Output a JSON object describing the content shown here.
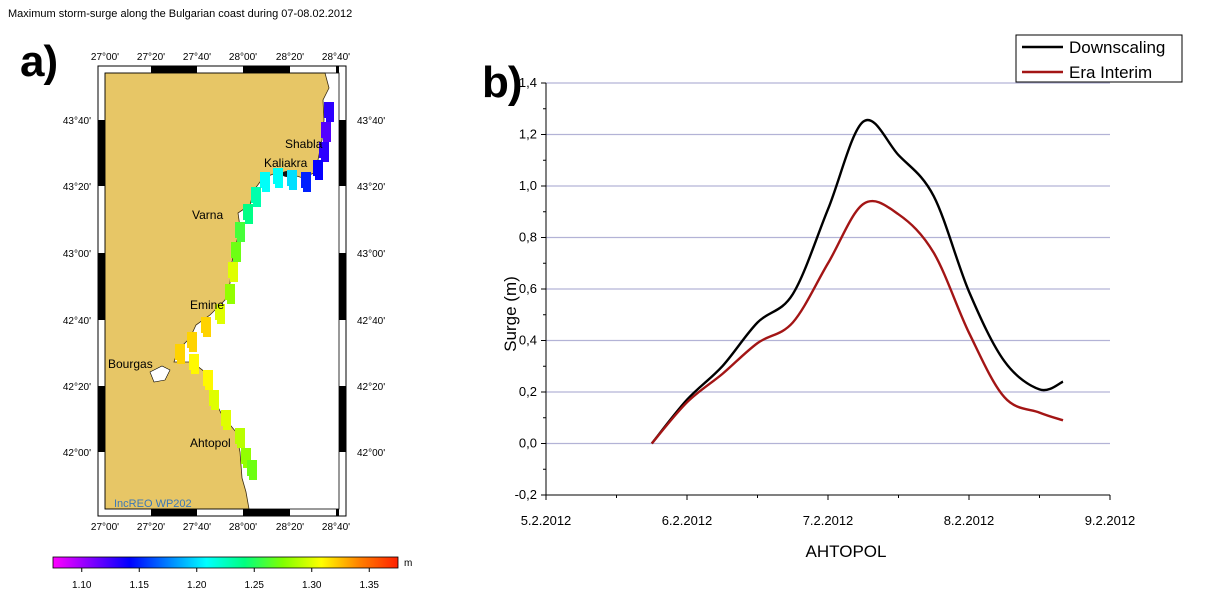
{
  "title": "Maximum storm-surge along the Bulgarian coast during 07-08.02.2012",
  "panel_a": {
    "letter": "a)",
    "lon_labels": [
      "27°00'",
      "27°20'",
      "27°40'",
      "28°00'",
      "28°20'",
      "28°40'"
    ],
    "lat_labels": [
      "43°40'",
      "43°20'",
      "43°00'",
      "42°40'",
      "42°20'",
      "42°00'"
    ],
    "places": [
      "Shabla",
      "Kaliakra",
      "Varna",
      "Emine",
      "Bourgas",
      "Ahtopol"
    ],
    "watermark": "IncREO WP202",
    "colors": {
      "land": "#e7c666",
      "sea": "#ffffff"
    },
    "colorbar": {
      "ticks": [
        "1.10",
        "1.15",
        "1.20",
        "1.25",
        "1.30",
        "1.35"
      ],
      "unit": "m",
      "min": 1.075,
      "max": 1.375,
      "colors": [
        "#ff00ff",
        "#8000ff",
        "#0000ff",
        "#0080ff",
        "#00ffff",
        "#00ff80",
        "#80ff00",
        "#ffff00",
        "#ff8000",
        "#ff2000"
      ]
    },
    "coast_surge": [
      1.13,
      1.12,
      1.13,
      1.14,
      1.15,
      1.2,
      1.21,
      1.23,
      1.24,
      1.26,
      1.27,
      1.3,
      1.28,
      1.3,
      1.32,
      1.32,
      1.32,
      1.31,
      1.3,
      1.3,
      1.29,
      1.28,
      1.27
    ]
  },
  "chart_data": {
    "type": "line",
    "panel_letter": "b)",
    "xlabel": "AHTOPOL",
    "ylabel": "Surge (m)",
    "xticks": [
      "5.2.2012",
      "6.2.2012",
      "7.2.2012",
      "8.2.2012",
      "9.2.2012"
    ],
    "xlim": [
      "2012-02-05",
      "2012-02-09"
    ],
    "yticks": [
      "-0,2",
      "0,0",
      "0,2",
      "0,4",
      "0,6",
      "0,8",
      "1,0",
      "1,2",
      "1,4"
    ],
    "ylim": [
      -0.2,
      1.4
    ],
    "grid": "horizontal",
    "legend": "top-right",
    "x": [
      "2012-02-05 18:00",
      "2012-02-06 00:00",
      "2012-02-06 06:00",
      "2012-02-06 12:00",
      "2012-02-06 18:00",
      "2012-02-07 00:00",
      "2012-02-07 06:00",
      "2012-02-07 12:00",
      "2012-02-07 18:00",
      "2012-02-08 00:00",
      "2012-02-08 06:00",
      "2012-02-08 12:00",
      "2012-02-08 16:00"
    ],
    "series": [
      {
        "name": "Downscaling",
        "color": "#000000",
        "values": [
          0.0,
          0.17,
          0.3,
          0.47,
          0.58,
          0.91,
          1.25,
          1.12,
          0.96,
          0.59,
          0.32,
          0.21,
          0.24
        ]
      },
      {
        "name": "Era Interim",
        "color": "#a31515",
        "values": [
          0.0,
          0.16,
          0.27,
          0.39,
          0.47,
          0.7,
          0.93,
          0.89,
          0.74,
          0.43,
          0.18,
          0.12,
          0.09
        ]
      }
    ]
  }
}
